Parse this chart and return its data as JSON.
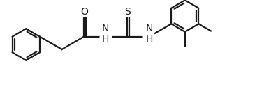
{
  "bg_color": "#ffffff",
  "line_color": "#1a1a1a",
  "line_width": 1.6,
  "font_size": 10,
  "fig_width": 3.88,
  "fig_height": 1.28,
  "dpi": 100,
  "xlim": [
    0.0,
    10.5
  ],
  "ylim": [
    0.2,
    3.7
  ]
}
